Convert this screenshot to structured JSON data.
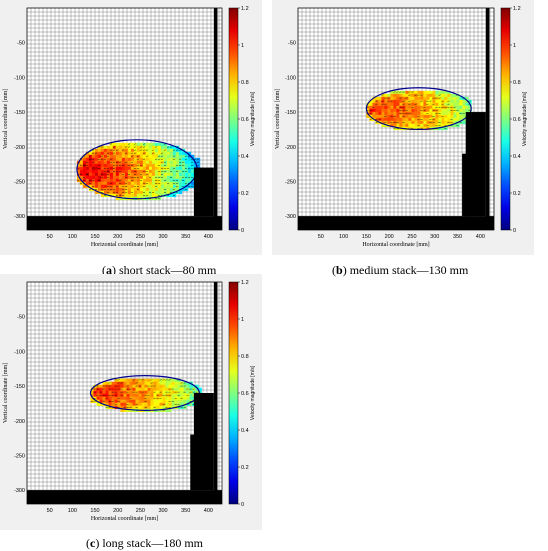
{
  "chart_data": [
    {
      "type": "heatmap",
      "caption_letter": "a",
      "caption_text": " short stack—80 mm",
      "xlabel": "Horizontal coordinate [mm]",
      "ylabel": "Vertical coordinate [mm]",
      "xticks": [
        50,
        100,
        150,
        200,
        250,
        300,
        350,
        400
      ],
      "yticks": [
        -50,
        -100,
        -150,
        -200,
        -250,
        -300
      ],
      "xlim": [
        0,
        430
      ],
      "ylim": [
        -320,
        0
      ],
      "colorbar": {
        "label": "Velocity magnitude [m/s]",
        "ticks": [
          "0",
          "0.2",
          "0.4",
          "0.6",
          "0.8",
          "1",
          "1.2"
        ],
        "range": [
          0,
          1.2
        ]
      },
      "flow_region": {
        "x_range": [
          110,
          375
        ],
        "y_range": [
          -275,
          -190
        ],
        "peak_velocity": 1.1,
        "core_velocity": 0.9,
        "tail_velocity": 0.15
      }
    },
    {
      "type": "heatmap",
      "caption_letter": "b",
      "caption_text": " medium stack—130 mm",
      "xlabel": "Horizontal coordinate [mm]",
      "ylabel": "Vertical coordinate [mm]",
      "xticks": [
        50,
        100,
        150,
        200,
        250,
        300,
        350,
        400
      ],
      "yticks": [
        -50,
        -100,
        -150,
        -200,
        -250,
        -300
      ],
      "xlim": [
        0,
        430
      ],
      "ylim": [
        -320,
        0
      ],
      "colorbar": {
        "label": "Velocity magnitude [m/s]",
        "ticks": [
          "0",
          "0.2",
          "0.4",
          "0.6",
          "0.8",
          "1",
          "1.2"
        ],
        "range": [
          0,
          1.2
        ]
      },
      "flow_region": {
        "x_range": [
          150,
          380
        ],
        "y_range": [
          -175,
          -115
        ],
        "peak_velocity": 1.0,
        "core_velocity": 0.85,
        "tail_velocity": 0.5
      }
    },
    {
      "type": "heatmap",
      "caption_letter": "c",
      "caption_text": " long stack—180 mm",
      "xlabel": "Horizontal coordinate [mm]",
      "ylabel": "Vertical coordinate [mm]",
      "xticks": [
        50,
        100,
        150,
        200,
        250,
        300,
        350,
        400
      ],
      "yticks": [
        -50,
        -100,
        -150,
        -200,
        -250,
        -300
      ],
      "xlim": [
        0,
        430
      ],
      "ylim": [
        -320,
        0
      ],
      "colorbar": {
        "label": "Velocity magnitude [m/s]",
        "ticks": [
          "0",
          "0.2",
          "0.4",
          "0.6",
          "0.8",
          "1",
          "1.2"
        ],
        "range": [
          0,
          1.2
        ]
      },
      "flow_region": {
        "x_range": [
          140,
          380
        ],
        "y_range": [
          -185,
          -135
        ],
        "peak_velocity": 1.0,
        "core_velocity": 0.9,
        "tail_velocity": 0.4
      }
    }
  ]
}
